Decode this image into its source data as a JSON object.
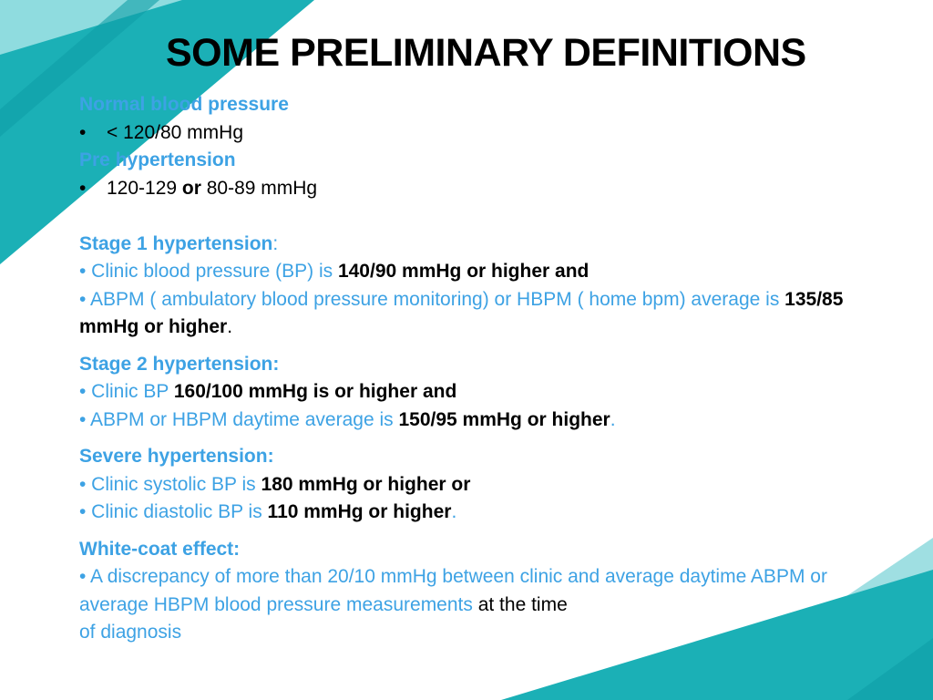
{
  "slide": {
    "title": "SOME PRELIMINARY DEFINITIONS"
  },
  "normal": {
    "heading": "Normal blood pressure",
    "bullet_symbol": "•",
    "value": "< 120/80 mmHg"
  },
  "pre": {
    "heading": "Pre hypertension",
    "bullet_symbol": "•",
    "value_a": "120-129 ",
    "or": "or",
    "value_b": " 80-89 mmHg"
  },
  "stage1": {
    "heading": "Stage 1 hypertension",
    "colon": ":",
    "b1_text": "• Clinic blood pressure (BP) is ",
    "b1_bold": "140/90 mmHg or higher and",
    "b2_text": "• ABPM ( ambulatory blood pressure monitoring)  or HBPM ( home bpm) average is ",
    "b2_bold": "135/85 mmHg or higher",
    "b2_end": "."
  },
  "stage2": {
    "heading": "Stage 2 hypertension:",
    "b1_text": "• Clinic BP ",
    "b1_bold": "160/100 mmHg is or higher and",
    "b2_text": "• ABPM or HBPM daytime average is ",
    "b2_bold": "150/95 mmHg or higher",
    "b2_end": "."
  },
  "severe": {
    "heading": "Severe hypertension:",
    "b1_text": "• Clinic systolic BP is ",
    "b1_bold": "180 mmHg or higher or",
    "b2_text": "• Clinic diastolic BP is ",
    "b2_bold": "110 mmHg or higher",
    "b2_end": "."
  },
  "whitecoat": {
    "heading": "White-coat effect:",
    "b1_text": "• A discrepancy of more than 20/10 mmHg between clinic and average daytime ABPM or average HBPM blood pressure measurements",
    "b1_black": " at the time",
    "b1_end": "of diagnosis"
  },
  "colors": {
    "teal": "#1bb0b6",
    "teal_dark": "#0f9ea6",
    "teal_light": "#74d3d6",
    "text_blue": "#3da2e4"
  }
}
